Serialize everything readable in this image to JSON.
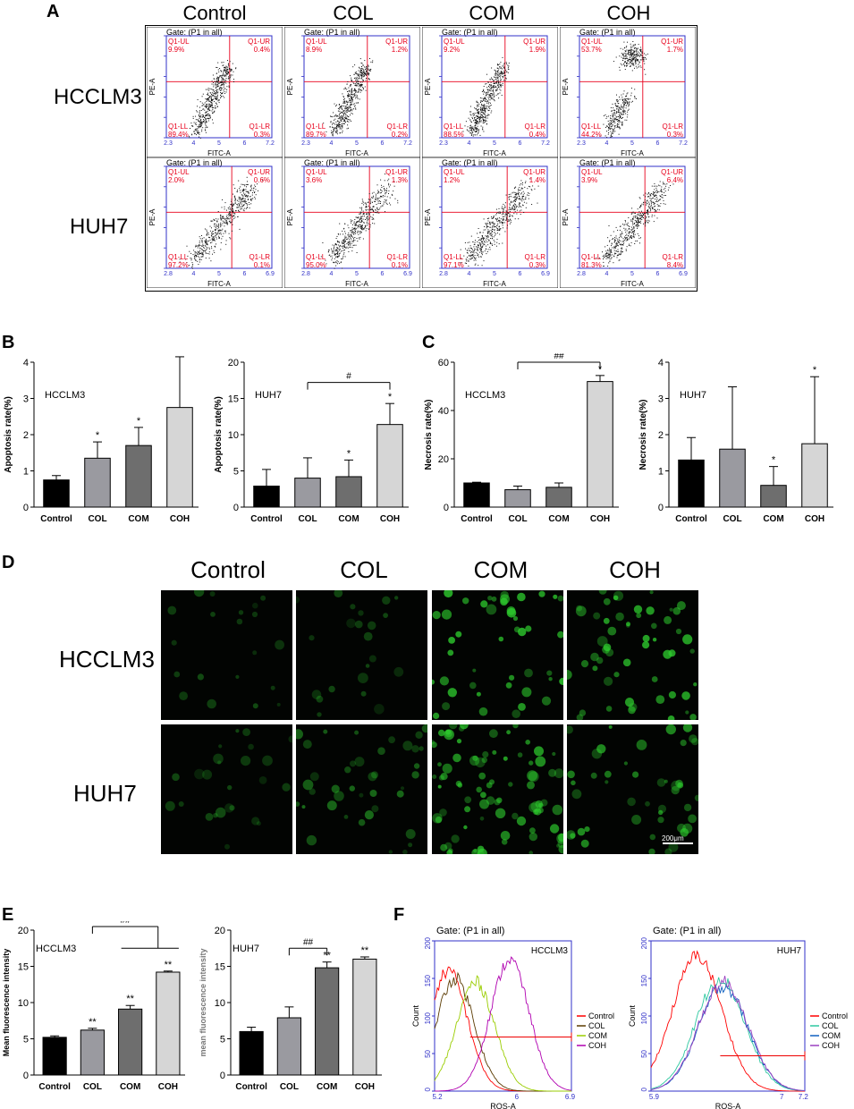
{
  "panels": {
    "A": "A",
    "B": "B",
    "C": "C",
    "D": "D",
    "E": "E",
    "F": "F"
  },
  "groups": [
    "Control",
    "COL",
    "COM",
    "COH"
  ],
  "cell_lines": [
    "HCCLM3",
    "HUH7"
  ],
  "flow": {
    "gate": "Gate: (P1 in all)",
    "xaxis": "FITC-A",
    "yaxis": "PE-A",
    "quad_names": [
      "Q1-UL",
      "Q1-UR",
      "Q1-LL",
      "Q1-LR"
    ],
    "HCCLM3": {
      "xticks": [
        "2.3",
        "4",
        "5",
        "6",
        "7.2"
      ],
      "cells": [
        {
          "ul": "9.9%",
          "ur": "0.4%",
          "ll": "89.4%",
          "lr": "0.3%"
        },
        {
          "ul": "8.9%",
          "ur": "1.2%",
          "ll": "89.7%",
          "lr": "0.2%"
        },
        {
          "ul": "9.2%",
          "ur": "1.9%",
          "ll": "88.5%",
          "lr": "0.4%"
        },
        {
          "ul": "53.7%",
          "ur": "1.7%",
          "ll": "44.2%",
          "lr": "0.3%"
        }
      ]
    },
    "HUH7": {
      "xticks": [
        "2.8",
        "4",
        "5",
        "6",
        "6.9"
      ],
      "cells": [
        {
          "ul": "2.0%",
          "ur": "0.6%",
          "ll": "97.2%",
          "lr": "0.1%"
        },
        {
          "ul": "3.6%",
          "ur": "1.3%",
          "ll": "95.0%",
          "lr": "0.1%"
        },
        {
          "ul": "1.2%",
          "ur": "1.4%",
          "ll": "97.1%",
          "lr": "0.3%"
        },
        {
          "ul": "3.9%",
          "ur": "6.4%",
          "ll": "81.3%",
          "lr": "8.4%"
        }
      ]
    }
  },
  "scale_bar": "200μm",
  "chart_data": [
    {
      "id": "B-HCCLM3",
      "type": "bar",
      "title": "HCCLM3",
      "ylabel": "Apoptosis rate(%)",
      "categories": [
        "Control",
        "COL",
        "COM",
        "COH"
      ],
      "values": [
        0.75,
        1.35,
        1.7,
        2.75
      ],
      "errors": [
        0.12,
        0.45,
        0.5,
        1.4
      ],
      "ylim": [
        0,
        4
      ],
      "yticks": [
        "0",
        "1",
        "2",
        "3",
        "4"
      ],
      "sig": [
        "",
        "*",
        "*",
        "*"
      ],
      "bracket": null
    },
    {
      "id": "B-HUH7",
      "type": "bar",
      "title": "HUH7",
      "ylabel": "Apoptosis rate(%)",
      "categories": [
        "Control",
        "COL",
        "COM",
        "COH"
      ],
      "values": [
        2.9,
        4.0,
        4.2,
        11.4
      ],
      "errors": [
        2.3,
        2.8,
        2.3,
        2.9
      ],
      "ylim": [
        0,
        20
      ],
      "yticks": [
        "0",
        "5",
        "10",
        "15",
        "20"
      ],
      "sig": [
        "",
        "",
        "*",
        "*"
      ],
      "bracket": {
        "from": 1,
        "to": 3,
        "label": "#"
      }
    },
    {
      "id": "C-HCCLM3",
      "type": "bar",
      "title": "HCCLM3",
      "ylabel": "Necrosis rate(%)",
      "categories": [
        "Control",
        "COL",
        "COM",
        "COH"
      ],
      "values": [
        10,
        7.2,
        8.2,
        52
      ],
      "errors": [
        0.3,
        1.5,
        1.8,
        2.5
      ],
      "ylim": [
        0,
        60
      ],
      "yticks": [
        "0",
        "20",
        "40",
        "60"
      ],
      "sig": [
        "",
        "",
        "",
        "*"
      ],
      "bracket": {
        "from": 1,
        "to": 3,
        "label": "##"
      }
    },
    {
      "id": "C-HUH7",
      "type": "bar",
      "title": "HUH7",
      "ylabel": "Necrosis rate(%)",
      "categories": [
        "Control",
        "COL",
        "COM",
        "COH"
      ],
      "values": [
        1.3,
        1.6,
        0.6,
        1.75
      ],
      "errors": [
        0.62,
        1.72,
        0.52,
        1.85
      ],
      "ylim": [
        0,
        4
      ],
      "yticks": [
        "0",
        "1",
        "2",
        "3",
        "4"
      ],
      "sig": [
        "",
        "",
        "*",
        "*"
      ],
      "bracket": null
    },
    {
      "id": "E-HCCLM3",
      "type": "bar",
      "title": "HCCLM3",
      "ylabel": "Mean fluorescence intensity",
      "categories": [
        "Control",
        "COL",
        "COM",
        "COH"
      ],
      "values": [
        5.2,
        6.2,
        9.1,
        14.2
      ],
      "errors": [
        0.2,
        0.25,
        0.5,
        0.15
      ],
      "ylim": [
        0,
        20
      ],
      "yticks": [
        "0",
        "5",
        "10",
        "15",
        "20"
      ],
      "sig": [
        "",
        "**",
        "**",
        "**"
      ],
      "bracket": {
        "from": 1,
        "to": "2-3",
        "label": "##"
      }
    },
    {
      "id": "E-HUH7",
      "type": "bar",
      "title": "HUH7",
      "ylabel": "mean fluorescence intensity",
      "categories": [
        "Control",
        "COL",
        "COM",
        "COH"
      ],
      "values": [
        6.0,
        7.9,
        14.8,
        16.0
      ],
      "errors": [
        0.6,
        1.5,
        0.8,
        0.3
      ],
      "ylim": [
        0,
        20
      ],
      "yticks": [
        "0",
        "5",
        "10",
        "15",
        "20"
      ],
      "sig": [
        "",
        "",
        "**",
        "**"
      ],
      "bracket": {
        "from": 1,
        "to": 2,
        "label": "##"
      }
    },
    {
      "id": "F-HCCLM3",
      "type": "line",
      "title": "HCCLM3",
      "gate": "Gate: (P1 in all)",
      "xlabel": "ROS-A",
      "ylabel": "Count",
      "xticks": [
        "5.2",
        "6",
        "6.9"
      ],
      "yticks": [
        "0",
        "50",
        "100",
        "150",
        "200"
      ],
      "ylim": [
        0,
        200
      ],
      "legend": [
        "Control",
        "COL",
        "COM",
        "COH"
      ],
      "series_peaks": [
        {
          "name": "Control",
          "peak_x": 0.1,
          "peak_y": 160
        },
        {
          "name": "COL",
          "peak_x": 0.15,
          "peak_y": 150
        },
        {
          "name": "COM",
          "peak_x": 0.3,
          "peak_y": 145
        },
        {
          "name": "COH",
          "peak_x": 0.55,
          "peak_y": 175
        }
      ],
      "gate_line_y": 72
    },
    {
      "id": "F-HUH7",
      "type": "line",
      "title": "HUH7",
      "gate": "Gate: (P1 in all)",
      "xlabel": "ROS-A",
      "ylabel": "Count",
      "xticks": [
        "5.9",
        "7",
        "7.2"
      ],
      "yticks": [
        "0",
        "50",
        "100",
        "150",
        "200"
      ],
      "ylim": [
        0,
        200
      ],
      "legend": [
        "Control",
        "COL",
        "COM",
        "COH"
      ],
      "series_peaks": [
        {
          "name": "Control",
          "peak_x": 0.3,
          "peak_y": 180
        },
        {
          "name": "COL",
          "peak_x": 0.45,
          "peak_y": 150
        },
        {
          "name": "COM",
          "peak_x": 0.47,
          "peak_y": 140
        },
        {
          "name": "COH",
          "peak_x": 0.47,
          "peak_y": 145
        }
      ],
      "gate_line_y": 47
    }
  ],
  "colors": {
    "control": "#000000",
    "col": "#9a9aa0",
    "com": "#6e6e6e",
    "coh": "#d6d6d6",
    "flow_red": "#e8001c",
    "flow_blue": "#3030c8",
    "fluor": "#2ecc2e",
    "hist_HCCLM3": [
      "#ff0000",
      "#5a3a00",
      "#9acd00",
      "#b000b0"
    ],
    "hist_HUH7": [
      "#ff0000",
      "#2ec8a0",
      "#1060c0",
      "#9a40c0"
    ]
  }
}
